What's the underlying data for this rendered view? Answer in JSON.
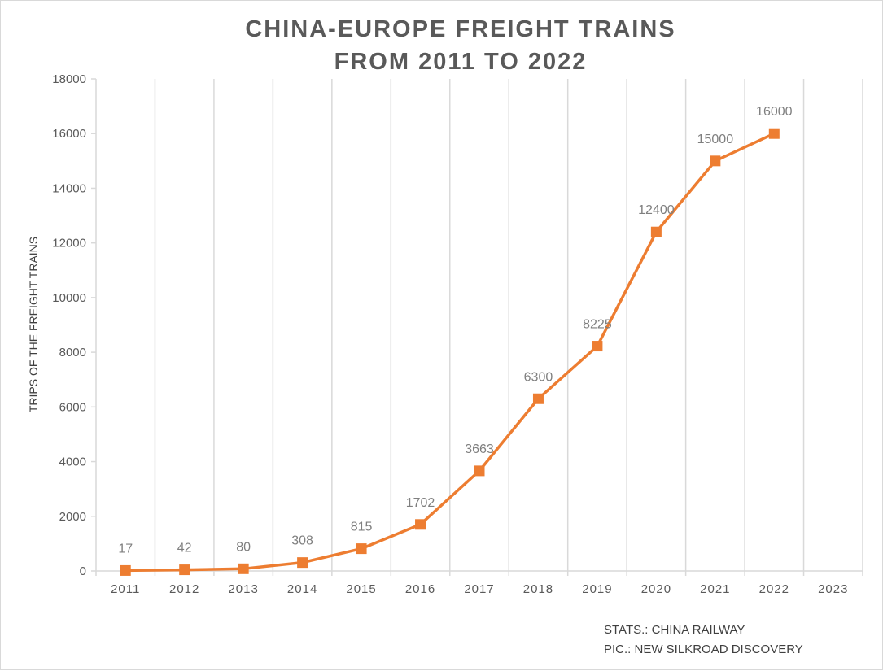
{
  "colors": {
    "series": "#ed7d31",
    "grid": "#d9d9d9",
    "axis_text": "#595959",
    "data_label": "#7f7f7f"
  },
  "chart_data": {
    "type": "line",
    "title_lines": [
      "CHINA-EUROPE FREIGHT TRAINS",
      "FROM 2011 TO 2022"
    ],
    "xlabel": "",
    "ylabel": "TRIPS OF THE FREIGHT TRAINS",
    "categories": [
      "2011",
      "2012",
      "2013",
      "2014",
      "2015",
      "2016",
      "2017",
      "2018",
      "2019",
      "2020",
      "2021",
      "2022",
      "2023"
    ],
    "series": [
      {
        "values": [
          17,
          42,
          80,
          308,
          815,
          1702,
          3663,
          6300,
          8225,
          12400,
          15000,
          16000,
          null
        ],
        "marker": "square"
      }
    ],
    "ylim": [
      0,
      18000
    ],
    "yticks": [
      0,
      2000,
      4000,
      6000,
      8000,
      10000,
      12000,
      14000,
      16000,
      18000
    ],
    "grid": "vertical",
    "data_labels": true,
    "legend": "none"
  },
  "credits": {
    "stats": "STATS.: CHINA RAILWAY",
    "pic": "PIC.: NEW SILKROAD DISCOVERY"
  }
}
